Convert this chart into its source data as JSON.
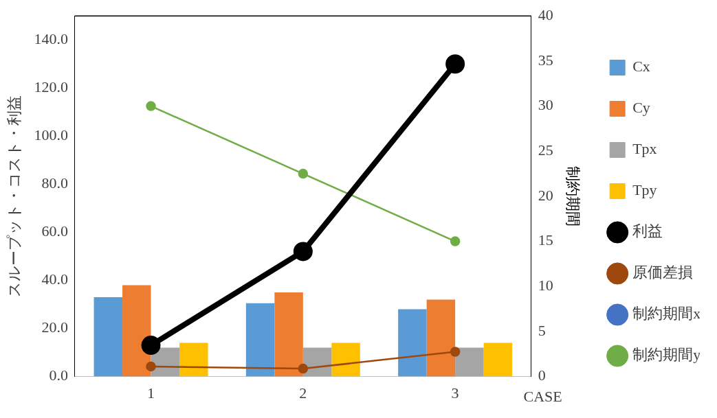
{
  "chart_data": {
    "type": "bar",
    "categories": [
      "1",
      "2",
      "3"
    ],
    "xlabel": "CASE",
    "ylabel": "スループット・コスト・利益",
    "y2label": "制約期間",
    "ylim": [
      0,
      150
    ],
    "yticks": [
      {
        "value": 0,
        "label": "0.0"
      },
      {
        "value": 20,
        "label": "20.0"
      },
      {
        "value": 40,
        "label": "40.0"
      },
      {
        "value": 60,
        "label": "60.0"
      },
      {
        "value": 80,
        "label": "80.0"
      },
      {
        "value": 100,
        "label": "100.0"
      },
      {
        "value": 120,
        "label": "120.0"
      },
      {
        "value": 140,
        "label": "140.0"
      }
    ],
    "y2lim": [
      0,
      40
    ],
    "y2ticks": [
      0,
      5,
      10,
      15,
      20,
      25,
      30,
      35,
      40
    ],
    "grid": false,
    "legend": "right",
    "marker": "circle",
    "series": [
      {
        "name": "Cx",
        "color": "#5b9bd5",
        "values": [
          33,
          30.5,
          28
        ]
      },
      {
        "name": "Cy",
        "color": "#ed7d31",
        "values": [
          38,
          35,
          32
        ]
      },
      {
        "name": "Tpx",
        "color": "#a5a5a5",
        "values": [
          12,
          12,
          12
        ]
      },
      {
        "name": "Tpy",
        "color": "#ffc000",
        "values": [
          14,
          14,
          14
        ]
      },
      {
        "name": "利益",
        "type": "line",
        "color": "#000000",
        "values": [
          13,
          52,
          130
        ]
      },
      {
        "name": "原価差損",
        "type": "line",
        "color": "#9e480e",
        "values": [
          4.2,
          3.3,
          10.3
        ]
      },
      {
        "name": "制約期間x",
        "type": "line",
        "color": "#4472c4",
        "axis": "y2",
        "values": [
          null,
          null,
          null
        ]
      },
      {
        "name": "制約期間y",
        "type": "line",
        "color": "#70ad47",
        "axis": "y2",
        "values": [
          30,
          22.5,
          15
        ]
      }
    ]
  }
}
